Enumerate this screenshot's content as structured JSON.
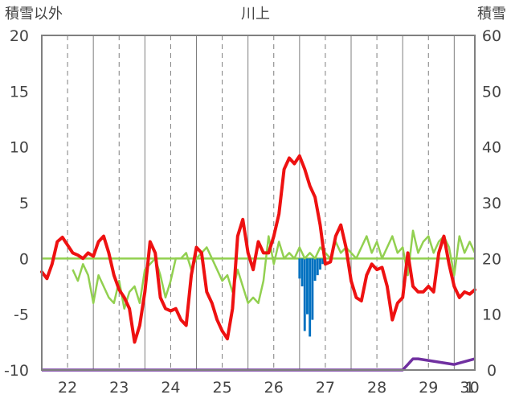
{
  "chart_data": {
    "type": "line",
    "title": "川上",
    "left_axis": {
      "label": "積雪以外",
      "range": [
        -10,
        20
      ],
      "ticks": [
        "20",
        "15",
        "10",
        "5",
        "0",
        "-5",
        "-10"
      ],
      "tick_values": [
        20,
        15,
        10,
        5,
        0,
        -5,
        -10
      ]
    },
    "right_axis": {
      "label": "積雪",
      "range": [
        0,
        60
      ],
      "ticks": [
        "60",
        "50",
        "40",
        "30",
        "20",
        "10",
        "0"
      ],
      "tick_values": [
        60,
        50,
        40,
        30,
        20,
        10,
        0
      ]
    },
    "x_axis": {
      "range": [
        21.5,
        29.9
      ],
      "labels": [
        "22",
        "23",
        "24",
        "25",
        "26",
        "27",
        "28",
        "29",
        "30",
        "1"
      ],
      "label_positions": [
        22,
        23,
        24,
        25,
        26,
        27,
        28,
        29,
        30,
        31
      ],
      "day_boundaries": [
        21.5,
        22.5,
        23.5,
        24.5,
        25.5,
        26.5,
        27.5,
        28.5,
        29.5,
        30.5,
        31.5
      ]
    },
    "grid": "dashed vertical at day centers; solid vertical at day boundaries",
    "colors": {
      "temperature": "#ee1111",
      "wind": "#92d050",
      "precipitation": "#0070c0",
      "snow_depth": "#7030a0",
      "baseline": "#92d050",
      "frame": "#808080"
    },
    "series": [
      {
        "key": "temperature",
        "axis": "left",
        "x": [
          21.5,
          21.6,
          21.7,
          21.8,
          21.9,
          22.0,
          22.1,
          22.2,
          22.3,
          22.4,
          22.5,
          22.6,
          22.7,
          22.8,
          22.9,
          23.0,
          23.1,
          23.2,
          23.3,
          23.4,
          23.5,
          23.6,
          23.7,
          23.8,
          23.9,
          24.0,
          24.1,
          24.2,
          24.3,
          24.4,
          24.5,
          24.6,
          24.7,
          24.8,
          24.9,
          25.0,
          25.1,
          25.2,
          25.3,
          25.4,
          25.5,
          25.6,
          25.7,
          25.8,
          25.9,
          26.0,
          26.1,
          26.2,
          26.3,
          26.4,
          26.5,
          26.6,
          26.7,
          26.8,
          26.9,
          27.0,
          27.1,
          27.2,
          27.3,
          27.4,
          27.5,
          27.6,
          27.7,
          27.8,
          27.9,
          28.0,
          28.1,
          28.2,
          28.3,
          28.4,
          28.5,
          28.6,
          28.7,
          28.8,
          28.9,
          29.0,
          29.1,
          29.2,
          29.3,
          29.4,
          29.5,
          29.6,
          29.7,
          29.8,
          29.9
        ],
        "values": [
          -1.2,
          -1.8,
          -0.5,
          1.5,
          1.9,
          1.2,
          0.5,
          0.3,
          0.0,
          0.5,
          0.2,
          1.5,
          2.0,
          0.5,
          -1.5,
          -2.8,
          -3.5,
          -4.5,
          -7.5,
          -6.0,
          -3.0,
          1.5,
          0.5,
          -3.5,
          -4.5,
          -4.7,
          -4.5,
          -5.5,
          -6.0,
          -1.5,
          1.0,
          0.5,
          -3.0,
          -4.0,
          -5.5,
          -6.5,
          -7.2,
          -4.5,
          2.0,
          3.5,
          0.5,
          -1.0,
          1.5,
          0.5,
          0.5,
          2.0,
          4.0,
          8.0,
          9.0,
          8.5,
          9.2,
          8.0,
          6.5,
          5.5,
          3.0,
          -0.5,
          -0.3,
          2.0,
          3.0,
          1.0,
          -2.0,
          -3.5,
          -3.8,
          -1.5,
          -0.5,
          -1.0,
          -0.8,
          -2.5,
          -5.5,
          -4.0,
          -3.5,
          0.5,
          -2.5,
          -3.0,
          -3.0,
          -2.5,
          -3.0,
          0.5,
          2.0,
          -0.5,
          -2.5,
          -3.5,
          -3.0,
          -3.2,
          -2.8
        ]
      },
      {
        "key": "wind",
        "axis": "left",
        "x": [
          22.1,
          22.2,
          22.3,
          22.4,
          22.5,
          22.6,
          22.7,
          22.8,
          22.9,
          23.0,
          23.1,
          23.2,
          23.3,
          23.4,
          23.5,
          23.6,
          23.7,
          23.8,
          23.9,
          24.0,
          24.1,
          24.2,
          24.3,
          24.4,
          24.5,
          24.6,
          24.7,
          24.8,
          24.9,
          25.0,
          25.1,
          25.2,
          25.3,
          25.4,
          25.5,
          25.6,
          25.7,
          25.8,
          25.9,
          26.0,
          26.1,
          26.2,
          26.3,
          26.4,
          26.5,
          26.6,
          26.7,
          26.8,
          26.9,
          27.0,
          27.1,
          27.2,
          27.3,
          27.4,
          27.5,
          27.6,
          27.7,
          27.8,
          27.9,
          28.0,
          28.1,
          28.2,
          28.3,
          28.4,
          28.5,
          28.6,
          28.7,
          28.8,
          28.9,
          29.0,
          29.1,
          29.2,
          29.3,
          29.4,
          29.5,
          29.6,
          29.7,
          29.8,
          29.9
        ],
        "values": [
          -1.0,
          -2.0,
          -0.5,
          -1.5,
          -4.0,
          -1.5,
          -2.5,
          -3.5,
          -4.0,
          -2.0,
          -4.5,
          -3.0,
          -2.5,
          -4.0,
          -1.0,
          -0.5,
          0.0,
          -1.5,
          -3.5,
          -2.0,
          0.0,
          0.0,
          0.5,
          -1.0,
          0.0,
          0.5,
          1.0,
          0.0,
          -1.0,
          -2.0,
          -1.5,
          -3.0,
          -1.0,
          -2.5,
          -4.0,
          -3.5,
          -4.0,
          -2.0,
          2.0,
          -0.5,
          1.5,
          0.0,
          0.5,
          0.0,
          1.0,
          0.0,
          0.5,
          0.0,
          1.0,
          0.5,
          0.0,
          1.5,
          0.5,
          1.0,
          0.5,
          0.0,
          1.0,
          2.0,
          0.5,
          1.5,
          0.0,
          1.0,
          2.0,
          0.5,
          1.0,
          -1.5,
          2.5,
          0.5,
          1.5,
          2.0,
          0.5,
          1.5,
          2.0,
          1.0,
          -1.5,
          2.0,
          0.5,
          1.5,
          0.5
        ]
      },
      {
        "key": "precipitation",
        "axis": "left",
        "type": "bar",
        "x": [
          26.5,
          26.55,
          26.6,
          26.65,
          26.7,
          26.75,
          26.8,
          26.85,
          26.9,
          26.95
        ],
        "values": [
          -1.8,
          -2.5,
          -6.5,
          -5.0,
          -7.0,
          -5.5,
          -2.0,
          -1.5,
          -1.0,
          -0.5
        ]
      },
      {
        "key": "snow_depth",
        "axis": "right",
        "x": [
          21.5,
          28.5,
          28.7,
          28.8,
          29.5,
          29.9
        ],
        "values": [
          0,
          0,
          2,
          2,
          1,
          2
        ]
      }
    ]
  }
}
